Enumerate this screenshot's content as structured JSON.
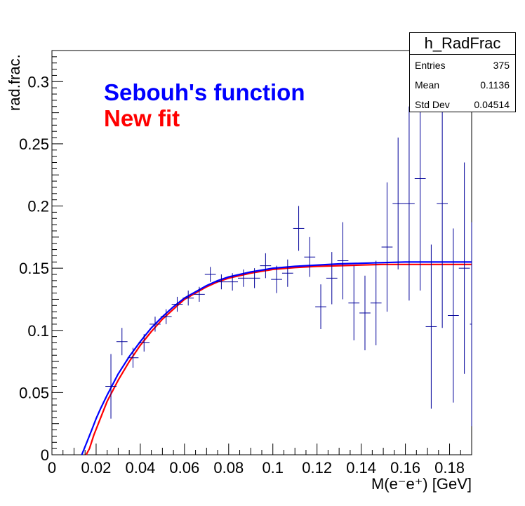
{
  "chart_data": {
    "type": "scatter",
    "title": "",
    "xlabel": "M(e⁻e⁺) [GeV]",
    "ylabel": "rad.frac.",
    "xlim": [
      0,
      0.19
    ],
    "ylim": [
      0,
      0.325
    ],
    "xticks": [
      "0",
      "0.02",
      "0.04",
      "0.06",
      "0.08",
      "0.1",
      "0.12",
      "0.14",
      "0.16",
      "0.18"
    ],
    "yticks": [
      "0",
      "0.05",
      "0.1",
      "0.15",
      "0.2",
      "0.25",
      "0.3"
    ],
    "grid": false,
    "bin_half_width": 0.0025,
    "series": [
      {
        "name": "h_RadFrac",
        "kind": "errorbar",
        "color": "#000099",
        "points": [
          {
            "x": 0.0267,
            "y": 0.055,
            "err": 0.026
          },
          {
            "x": 0.0317,
            "y": 0.091,
            "err": 0.011
          },
          {
            "x": 0.0367,
            "y": 0.078,
            "err": 0.008
          },
          {
            "x": 0.0417,
            "y": 0.09,
            "err": 0.007
          },
          {
            "x": 0.0467,
            "y": 0.105,
            "err": 0.006
          },
          {
            "x": 0.0517,
            "y": 0.111,
            "err": 0.006
          },
          {
            "x": 0.0567,
            "y": 0.121,
            "err": 0.006
          },
          {
            "x": 0.0617,
            "y": 0.126,
            "err": 0.006
          },
          {
            "x": 0.0667,
            "y": 0.129,
            "err": 0.006
          },
          {
            "x": 0.0717,
            "y": 0.145,
            "err": 0.006
          },
          {
            "x": 0.0767,
            "y": 0.139,
            "err": 0.006
          },
          {
            "x": 0.0817,
            "y": 0.139,
            "err": 0.007
          },
          {
            "x": 0.0867,
            "y": 0.142,
            "err": 0.007
          },
          {
            "x": 0.0917,
            "y": 0.142,
            "err": 0.008
          },
          {
            "x": 0.0967,
            "y": 0.152,
            "err": 0.01
          },
          {
            "x": 0.1017,
            "y": 0.141,
            "err": 0.011
          },
          {
            "x": 0.1067,
            "y": 0.146,
            "err": 0.011
          },
          {
            "x": 0.1117,
            "y": 0.182,
            "err": 0.018
          },
          {
            "x": 0.1167,
            "y": 0.159,
            "err": 0.016
          },
          {
            "x": 0.1217,
            "y": 0.119,
            "err": 0.018
          },
          {
            "x": 0.1267,
            "y": 0.142,
            "err": 0.021
          },
          {
            "x": 0.1317,
            "y": 0.156,
            "err": 0.031
          },
          {
            "x": 0.1367,
            "y": 0.122,
            "err": 0.03
          },
          {
            "x": 0.1417,
            "y": 0.114,
            "err": 0.03
          },
          {
            "x": 0.1467,
            "y": 0.122,
            "err": 0.034
          },
          {
            "x": 0.1517,
            "y": 0.167,
            "err": 0.052
          },
          {
            "x": 0.1567,
            "y": 0.202,
            "err": 0.053
          },
          {
            "x": 0.1617,
            "y": 0.202,
            "err": 0.078
          },
          {
            "x": 0.1667,
            "y": 0.222,
            "err": 0.09
          },
          {
            "x": 0.1717,
            "y": 0.103,
            "err": 0.066
          },
          {
            "x": 0.1767,
            "y": 0.202,
            "err": 0.1
          },
          {
            "x": 0.1817,
            "y": 0.112,
            "err": 0.07
          },
          {
            "x": 0.1867,
            "y": 0.15,
            "err": 0.085
          },
          {
            "x": 0.1917,
            "y": 0.105,
            "err": 0.082
          }
        ]
      },
      {
        "name": "Sebouh's function",
        "kind": "line",
        "color": "#0000ff",
        "x": [
          0.0135,
          0.016,
          0.018,
          0.02,
          0.022,
          0.025,
          0.03,
          0.035,
          0.04,
          0.045,
          0.05,
          0.055,
          0.06,
          0.065,
          0.07,
          0.075,
          0.08,
          0.09,
          0.1,
          0.11,
          0.12,
          0.13,
          0.14,
          0.15,
          0.16,
          0.17,
          0.18,
          0.1925
        ],
        "y": [
          0.0,
          0.011,
          0.02,
          0.029,
          0.037,
          0.048,
          0.065,
          0.079,
          0.091,
          0.102,
          0.111,
          0.119,
          0.126,
          0.131,
          0.136,
          0.14,
          0.143,
          0.147,
          0.15,
          0.1515,
          0.1525,
          0.1535,
          0.154,
          0.1545,
          0.155,
          0.155,
          0.155,
          0.155
        ]
      },
      {
        "name": "New fit",
        "kind": "line",
        "color": "#ff0000",
        "x": [
          0.0155,
          0.017,
          0.019,
          0.021,
          0.023,
          0.025,
          0.03,
          0.035,
          0.04,
          0.045,
          0.05,
          0.055,
          0.06,
          0.065,
          0.07,
          0.075,
          0.08,
          0.09,
          0.1,
          0.11,
          0.12,
          0.13,
          0.14,
          0.15,
          0.16,
          0.17,
          0.18,
          0.1925
        ],
        "y": [
          0.0,
          0.005,
          0.016,
          0.025,
          0.034,
          0.043,
          0.06,
          0.075,
          0.088,
          0.099,
          0.109,
          0.117,
          0.125,
          0.13,
          0.135,
          0.139,
          0.142,
          0.146,
          0.149,
          0.1505,
          0.1515,
          0.152,
          0.1525,
          0.153,
          0.153,
          0.153,
          0.153,
          0.153
        ]
      }
    ],
    "stats_box": {
      "title": "h_RadFrac",
      "rows": [
        {
          "label": "Entries",
          "value": "375"
        },
        {
          "label": "Mean",
          "value": "0.1136"
        },
        {
          "label": "Std Dev",
          "value": "0.04514"
        }
      ]
    },
    "legend": [
      {
        "text": "Sebouh's function",
        "color": "#0000ff"
      },
      {
        "text": "New fit",
        "color": "#ff0000"
      }
    ]
  }
}
